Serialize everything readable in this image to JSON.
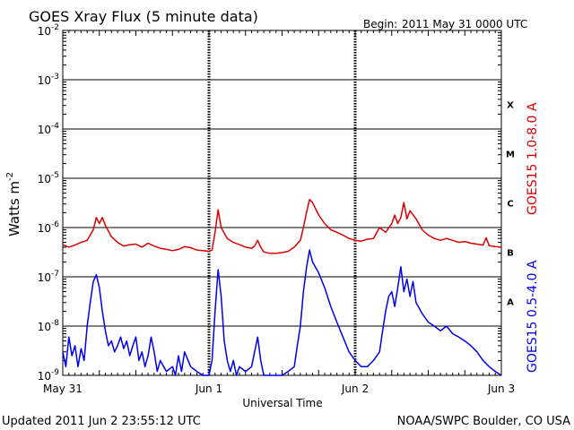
{
  "chart_data": {
    "type": "line",
    "title": "GOES Xray Flux (5 minute data)",
    "begin_label": "Begin:",
    "begin_value": "2011 May 31 0000 UTC",
    "xlabel": "Universal Time",
    "ylabel": "Watts m",
    "ylabel_exponent": "-2",
    "x_ticks": [
      "May 31",
      "Jun 1",
      "Jun 2",
      "Jun 3"
    ],
    "x_range_hours": [
      0,
      72
    ],
    "y_scale": "log",
    "y_ticks": [
      {
        "base": "10",
        "exp": "-9",
        "value": 1e-09
      },
      {
        "base": "10",
        "exp": "-8",
        "value": 1e-08
      },
      {
        "base": "10",
        "exp": "-7",
        "value": 1e-07
      },
      {
        "base": "10",
        "exp": "-6",
        "value": 1e-06
      },
      {
        "base": "10",
        "exp": "-5",
        "value": 1e-05
      },
      {
        "base": "10",
        "exp": "-4",
        "value": 0.0001
      },
      {
        "base": "10",
        "exp": "-3",
        "value": 0.001
      },
      {
        "base": "10",
        "exp": "-2",
        "value": 0.01
      }
    ],
    "ylim": [
      1e-09,
      0.01
    ],
    "flare_classes": [
      {
        "label": "A",
        "value": 3.16e-08
      },
      {
        "label": "B",
        "value": 3.16e-07
      },
      {
        "label": "C",
        "value": 3.16e-06
      },
      {
        "label": "M",
        "value": 3.16e-05
      },
      {
        "label": "X",
        "value": 0.000316
      }
    ],
    "grid": true,
    "colors": {
      "long": "#dd0000",
      "short": "#0000ee",
      "axes": "#000000"
    },
    "series": [
      {
        "name": "GOES15 1.0-8.0 A",
        "color": "#dd0000",
        "points": [
          [
            0,
            4.5e-07
          ],
          [
            1,
            4e-07
          ],
          [
            2,
            4.4e-07
          ],
          [
            3,
            5e-07
          ],
          [
            4,
            5.5e-07
          ],
          [
            5,
            9e-07
          ],
          [
            5.5,
            1.6e-06
          ],
          [
            6,
            1.2e-06
          ],
          [
            6.5,
            1.6e-06
          ],
          [
            7,
            1.1e-06
          ],
          [
            8,
            6.5e-07
          ],
          [
            9,
            5e-07
          ],
          [
            10,
            4.2e-07
          ],
          [
            11,
            4.5e-07
          ],
          [
            12,
            4.6e-07
          ],
          [
            13,
            4e-07
          ],
          [
            14,
            4.8e-07
          ],
          [
            15,
            4.2e-07
          ],
          [
            16,
            3.8e-07
          ],
          [
            17,
            3.6e-07
          ],
          [
            18,
            3.4e-07
          ],
          [
            19,
            3.6e-07
          ],
          [
            20,
            4.1e-07
          ],
          [
            21,
            3.9e-07
          ],
          [
            22,
            3.5e-07
          ],
          [
            23,
            3.4e-07
          ],
          [
            24,
            3.3e-07
          ],
          [
            24.5,
            3.5e-07
          ],
          [
            25,
            8e-07
          ],
          [
            25.5,
            2.3e-06
          ],
          [
            26,
            1e-06
          ],
          [
            27,
            6e-07
          ],
          [
            28,
            5e-07
          ],
          [
            29,
            4.5e-07
          ],
          [
            30,
            4e-07
          ],
          [
            31,
            3.8e-07
          ],
          [
            31.5,
            4.2e-07
          ],
          [
            32,
            5.5e-07
          ],
          [
            32.5,
            4e-07
          ],
          [
            33,
            3.2e-07
          ],
          [
            34,
            3e-07
          ],
          [
            35,
            3e-07
          ],
          [
            36,
            3.1e-07
          ],
          [
            37,
            3.3e-07
          ],
          [
            38,
            4e-07
          ],
          [
            39,
            5.5e-07
          ],
          [
            39.5,
            1e-06
          ],
          [
            40,
            2e-06
          ],
          [
            40.5,
            3.7e-06
          ],
          [
            41,
            3.2e-06
          ],
          [
            42,
            1.8e-06
          ],
          [
            43,
            1.2e-06
          ],
          [
            44,
            9e-07
          ],
          [
            45,
            8e-07
          ],
          [
            46,
            7e-07
          ],
          [
            47,
            6e-07
          ],
          [
            48,
            5.5e-07
          ],
          [
            49,
            5.3e-07
          ],
          [
            50,
            5.8e-07
          ],
          [
            51,
            6e-07
          ],
          [
            52,
            1e-06
          ],
          [
            53,
            8e-07
          ],
          [
            54,
            1.2e-06
          ],
          [
            54.5,
            1.8e-06
          ],
          [
            55,
            1.2e-06
          ],
          [
            55.5,
            1.6e-06
          ],
          [
            56,
            3.2e-06
          ],
          [
            56.5,
            1.5e-06
          ],
          [
            57,
            2.2e-06
          ],
          [
            58,
            1.5e-06
          ],
          [
            59,
            9e-07
          ],
          [
            60,
            7e-07
          ],
          [
            61,
            6e-07
          ],
          [
            62,
            5.5e-07
          ],
          [
            63,
            6e-07
          ],
          [
            64,
            5.5e-07
          ],
          [
            65,
            5e-07
          ],
          [
            66,
            5.2e-07
          ],
          [
            67,
            4.8e-07
          ],
          [
            68,
            4.6e-07
          ],
          [
            69,
            4.4e-07
          ],
          [
            69.5,
            6.2e-07
          ],
          [
            70,
            4.3e-07
          ],
          [
            71,
            4.1e-07
          ],
          [
            72,
            4e-07
          ]
        ]
      },
      {
        "name": "GOES15 0.5-4.0 A",
        "color": "#0000ee",
        "points": [
          [
            0,
            3e-09
          ],
          [
            0.5,
            1.5e-09
          ],
          [
            1,
            6e-09
          ],
          [
            1.5,
            2.5e-09
          ],
          [
            2,
            4e-09
          ],
          [
            2.5,
            1.5e-09
          ],
          [
            3,
            3.5e-09
          ],
          [
            3.5,
            2e-09
          ],
          [
            4,
            1e-08
          ],
          [
            4.5,
            3e-08
          ],
          [
            5,
            8e-08
          ],
          [
            5.5,
            1.1e-07
          ],
          [
            6,
            6e-08
          ],
          [
            6.5,
            2e-08
          ],
          [
            7,
            8e-09
          ],
          [
            7.5,
            4e-09
          ],
          [
            8,
            5e-09
          ],
          [
            8.5,
            3e-09
          ],
          [
            9,
            4e-09
          ],
          [
            9.5,
            6e-09
          ],
          [
            10,
            3.5e-09
          ],
          [
            10.5,
            5e-09
          ],
          [
            11,
            2.5e-09
          ],
          [
            11.5,
            4e-09
          ],
          [
            12,
            6e-09
          ],
          [
            12.5,
            2e-09
          ],
          [
            13,
            3e-09
          ],
          [
            13.5,
            1.5e-09
          ],
          [
            14,
            2.5e-09
          ],
          [
            14.5,
            6e-09
          ],
          [
            15,
            3e-09
          ],
          [
            15.5,
            1.2e-09
          ],
          [
            16,
            2e-09
          ],
          [
            17,
            1.2e-09
          ],
          [
            18,
            1.5e-09
          ],
          [
            18.5,
            1e-09
          ],
          [
            19,
            2.5e-09
          ],
          [
            19.5,
            1.2e-09
          ],
          [
            20,
            3e-09
          ],
          [
            21,
            1.5e-09
          ],
          [
            22,
            1.2e-09
          ],
          [
            23,
            1e-09
          ],
          [
            24,
            1e-09
          ],
          [
            24.5,
            2e-09
          ],
          [
            25,
            2e-08
          ],
          [
            25.5,
            1.4e-07
          ],
          [
            26,
            4e-08
          ],
          [
            26.5,
            5e-09
          ],
          [
            27,
            2e-09
          ],
          [
            27.5,
            1.2e-09
          ],
          [
            28,
            2e-09
          ],
          [
            28.5,
            1e-09
          ],
          [
            29,
            1.5e-09
          ],
          [
            30,
            1.2e-09
          ],
          [
            31,
            1.5e-09
          ],
          [
            32,
            6e-09
          ],
          [
            32.5,
            2e-09
          ],
          [
            33,
            1e-09
          ],
          [
            34,
            1e-09
          ],
          [
            35,
            1e-09
          ],
          [
            36,
            1e-09
          ],
          [
            37,
            1.2e-09
          ],
          [
            38,
            1.5e-09
          ],
          [
            38.5,
            4e-09
          ],
          [
            39,
            1e-08
          ],
          [
            39.5,
            5e-08
          ],
          [
            40,
            1.5e-07
          ],
          [
            40.5,
            3.5e-07
          ],
          [
            41,
            2e-07
          ],
          [
            42,
            1.2e-07
          ],
          [
            43,
            6e-08
          ],
          [
            44,
            2.5e-08
          ],
          [
            45,
            1.2e-08
          ],
          [
            46,
            6e-09
          ],
          [
            47,
            3e-09
          ],
          [
            48,
            2e-09
          ],
          [
            49,
            1.5e-09
          ],
          [
            50,
            1.5e-09
          ],
          [
            51,
            2e-09
          ],
          [
            52,
            3e-09
          ],
          [
            52.5,
            8e-09
          ],
          [
            53,
            2e-08
          ],
          [
            53.5,
            4e-08
          ],
          [
            54,
            5e-08
          ],
          [
            54.5,
            2.5e-08
          ],
          [
            55,
            6e-08
          ],
          [
            55.5,
            1.6e-07
          ],
          [
            56,
            5e-08
          ],
          [
            56.5,
            9e-08
          ],
          [
            57,
            4e-08
          ],
          [
            57.5,
            8e-08
          ],
          [
            58,
            3e-08
          ],
          [
            59,
            1.8e-08
          ],
          [
            60,
            1.2e-08
          ],
          [
            61,
            1e-08
          ],
          [
            62,
            8e-09
          ],
          [
            63,
            1e-08
          ],
          [
            64,
            7e-09
          ],
          [
            65,
            6e-09
          ],
          [
            66,
            5e-09
          ],
          [
            67,
            4e-09
          ],
          [
            68,
            3e-09
          ],
          [
            69,
            2e-09
          ],
          [
            70,
            1.5e-09
          ],
          [
            71,
            1.2e-09
          ],
          [
            72,
            1e-09
          ]
        ]
      }
    ]
  },
  "footer": {
    "updated": "Updated 2011 Jun  2 23:55:12 UTC",
    "credit": "NOAA/SWPC Boulder, CO USA"
  }
}
